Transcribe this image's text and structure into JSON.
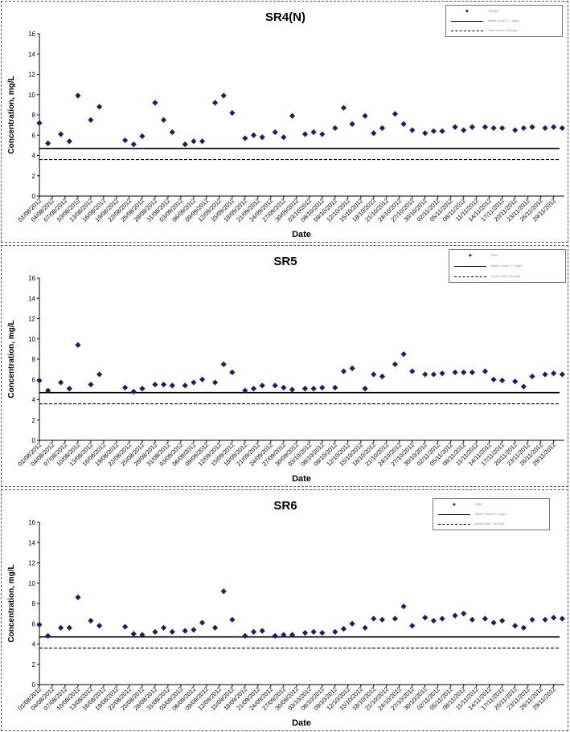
{
  "chart_data": [
    {
      "type": "scatter",
      "title": "SR4(N)",
      "xlabel": "Date",
      "ylabel": "Concentration, mg/L",
      "ylim": [
        0,
        16
      ],
      "yticks": [
        "0",
        "2",
        "4",
        "6",
        "8",
        "10",
        "12",
        "14",
        "16"
      ],
      "x_tick_labels": [
        "01/08/2012",
        "04/08/2012",
        "07/08/2012",
        "10/08/2012",
        "13/08/2012",
        "16/08/2012",
        "19/08/2012",
        "22/08/2012",
        "25/08/2012",
        "28/08/2012",
        "31/08/2012",
        "03/09/2012",
        "06/09/2012",
        "09/09/2012",
        "12/09/2012",
        "15/09/2012",
        "18/09/2012",
        "21/09/2012",
        "24/09/2012",
        "27/09/2012",
        "30/09/2012",
        "03/10/2012",
        "06/10/2012",
        "09/10/2012",
        "12/10/2012",
        "15/10/2012",
        "18/10/2012",
        "21/10/2012",
        "24/10/2012",
        "27/10/2012",
        "30/10/2012",
        "02/11/2012",
        "05/11/2012",
        "08/11/2012",
        "11/11/2012",
        "14/11/2012",
        "17/11/2012",
        "20/11/2012",
        "23/11/2012",
        "26/11/2012",
        "29/11/2012"
      ],
      "xlim": [
        "2012-08-01",
        "2012-11-30"
      ],
      "grid": false,
      "legend_position": "top-right",
      "series": [
        {
          "name": "SR4(N)",
          "marker": "diamond",
          "color": "#1c1c6c",
          "points": [
            [
              "2012-08-01",
              7.2
            ],
            [
              "2012-08-03",
              5.2
            ],
            [
              "2012-08-06",
              6.1
            ],
            [
              "2012-08-08",
              5.4
            ],
            [
              "2012-08-10",
              9.9
            ],
            [
              "2012-08-13",
              7.5
            ],
            [
              "2012-08-15",
              8.8
            ],
            [
              "2012-08-21",
              5.5
            ],
            [
              "2012-08-23",
              5.1
            ],
            [
              "2012-08-25",
              5.9
            ],
            [
              "2012-08-28",
              9.2
            ],
            [
              "2012-08-30",
              7.5
            ],
            [
              "2012-09-01",
              6.3
            ],
            [
              "2012-09-04",
              5.1
            ],
            [
              "2012-09-06",
              5.4
            ],
            [
              "2012-09-08",
              5.4
            ],
            [
              "2012-09-11",
              9.2
            ],
            [
              "2012-09-13",
              9.9
            ],
            [
              "2012-09-15",
              8.2
            ],
            [
              "2012-09-18",
              5.7
            ],
            [
              "2012-09-20",
              6.0
            ],
            [
              "2012-09-22",
              5.8
            ],
            [
              "2012-09-25",
              6.3
            ],
            [
              "2012-09-27",
              5.8
            ],
            [
              "2012-09-29",
              7.9
            ],
            [
              "2012-10-02",
              6.1
            ],
            [
              "2012-10-04",
              6.3
            ],
            [
              "2012-10-06",
              6.1
            ],
            [
              "2012-10-09",
              6.7
            ],
            [
              "2012-10-11",
              8.7
            ],
            [
              "2012-10-13",
              7.1
            ],
            [
              "2012-10-16",
              7.9
            ],
            [
              "2012-10-18",
              6.2
            ],
            [
              "2012-10-20",
              6.7
            ],
            [
              "2012-10-23",
              8.1
            ],
            [
              "2012-10-25",
              7.1
            ],
            [
              "2012-10-27",
              6.5
            ],
            [
              "2012-10-30",
              6.2
            ],
            [
              "2012-11-01",
              6.4
            ],
            [
              "2012-11-03",
              6.4
            ],
            [
              "2012-11-06",
              6.8
            ],
            [
              "2012-11-08",
              6.5
            ],
            [
              "2012-11-10",
              6.8
            ],
            [
              "2012-11-13",
              6.8
            ],
            [
              "2012-11-15",
              6.7
            ],
            [
              "2012-11-17",
              6.7
            ],
            [
              "2012-11-20",
              6.5
            ],
            [
              "2012-11-22",
              6.7
            ],
            [
              "2012-11-24",
              6.8
            ],
            [
              "2012-11-27",
              6.7
            ],
            [
              "2012-11-29",
              6.8
            ],
            [
              "2012-12-01",
              6.7
            ]
          ]
        },
        {
          "name": "Alarm Level: 4.7 mg/L",
          "type": "hline",
          "y": 4.7,
          "style": "solid"
        },
        {
          "name": "Limit Level: 3.6 mg/L",
          "type": "hline",
          "y": 3.6,
          "style": "dashed"
        }
      ]
    },
    {
      "type": "scatter",
      "title": "SR5",
      "xlabel": "Date",
      "ylabel": "Concentration, mg/L",
      "ylim": [
        0,
        16
      ],
      "yticks": [
        "0",
        "2",
        "4",
        "6",
        "8",
        "10",
        "12",
        "14",
        "16"
      ],
      "x_tick_labels": [
        "01/08/2012",
        "04/08/2012",
        "07/08/2012",
        "10/08/2012",
        "13/08/2012",
        "16/08/2012",
        "19/08/2012",
        "22/08/2012",
        "25/08/2012",
        "28/08/2012",
        "31/08/2012",
        "03/09/2012",
        "06/09/2012",
        "09/09/2012",
        "12/09/2012",
        "15/09/2012",
        "18/09/2012",
        "21/09/2012",
        "24/09/2012",
        "27/09/2012",
        "30/09/2012",
        "03/10/2012",
        "06/10/2012",
        "09/10/2012",
        "12/10/2012",
        "15/10/2012",
        "18/10/2012",
        "21/10/2012",
        "24/10/2012",
        "27/10/2012",
        "30/10/2012",
        "02/11/2012",
        "05/11/2012",
        "08/11/2012",
        "11/11/2012",
        "14/11/2012",
        "17/11/2012",
        "20/11/2012",
        "23/11/2012",
        "26/11/2012",
        "29/11/2012"
      ],
      "xlim": [
        "2012-08-01",
        "2012-11-30"
      ],
      "grid": false,
      "legend_position": "top-right",
      "series": [
        {
          "name": "SR5",
          "marker": "diamond",
          "color": "#1c1c6c",
          "points": [
            [
              "2012-08-01",
              5.9
            ],
            [
              "2012-08-03",
              4.9
            ],
            [
              "2012-08-06",
              5.7
            ],
            [
              "2012-08-08",
              5.1
            ],
            [
              "2012-08-10",
              9.4
            ],
            [
              "2012-08-13",
              5.5
            ],
            [
              "2012-08-15",
              6.5
            ],
            [
              "2012-08-21",
              5.2
            ],
            [
              "2012-08-23",
              4.8
            ],
            [
              "2012-08-25",
              5.1
            ],
            [
              "2012-08-28",
              5.5
            ],
            [
              "2012-08-30",
              5.5
            ],
            [
              "2012-09-01",
              5.4
            ],
            [
              "2012-09-04",
              5.4
            ],
            [
              "2012-09-06",
              5.7
            ],
            [
              "2012-09-08",
              6.0
            ],
            [
              "2012-09-11",
              5.7
            ],
            [
              "2012-09-13",
              7.5
            ],
            [
              "2012-09-15",
              6.7
            ],
            [
              "2012-09-18",
              4.9
            ],
            [
              "2012-09-20",
              5.1
            ],
            [
              "2012-09-22",
              5.4
            ],
            [
              "2012-09-25",
              5.4
            ],
            [
              "2012-09-27",
              5.2
            ],
            [
              "2012-09-29",
              5.0
            ],
            [
              "2012-10-02",
              5.1
            ],
            [
              "2012-10-04",
              5.1
            ],
            [
              "2012-10-06",
              5.2
            ],
            [
              "2012-10-09",
              5.2
            ],
            [
              "2012-10-11",
              6.8
            ],
            [
              "2012-10-13",
              7.1
            ],
            [
              "2012-10-16",
              5.1
            ],
            [
              "2012-10-18",
              6.5
            ],
            [
              "2012-10-20",
              6.3
            ],
            [
              "2012-10-23",
              7.5
            ],
            [
              "2012-10-25",
              8.5
            ],
            [
              "2012-10-27",
              6.8
            ],
            [
              "2012-10-30",
              6.5
            ],
            [
              "2012-11-01",
              6.5
            ],
            [
              "2012-11-03",
              6.6
            ],
            [
              "2012-11-06",
              6.7
            ],
            [
              "2012-11-08",
              6.7
            ],
            [
              "2012-11-10",
              6.7
            ],
            [
              "2012-11-13",
              6.8
            ],
            [
              "2012-11-15",
              6.0
            ],
            [
              "2012-11-17",
              5.9
            ],
            [
              "2012-11-20",
              5.8
            ],
            [
              "2012-11-22",
              5.3
            ],
            [
              "2012-11-24",
              6.3
            ],
            [
              "2012-11-27",
              6.5
            ],
            [
              "2012-11-29",
              6.6
            ],
            [
              "2012-12-01",
              6.5
            ]
          ]
        },
        {
          "name": "Alarm Level: 4.7 mg/L",
          "type": "hline",
          "y": 4.7,
          "style": "solid"
        },
        {
          "name": "Limit Level: 3.6 mg/L",
          "type": "hline",
          "y": 3.6,
          "style": "dashed"
        }
      ]
    },
    {
      "type": "scatter",
      "title": "SR6",
      "xlabel": "Date",
      "ylabel": "Concentration, mg/L",
      "ylim": [
        0,
        16
      ],
      "yticks": [
        "0",
        "2",
        "4",
        "6",
        "8",
        "10",
        "12",
        "14",
        "16"
      ],
      "x_tick_labels": [
        "01/08/2012",
        "04/08/2012",
        "07/08/2012",
        "10/08/2012",
        "13/08/2012",
        "16/08/2012",
        "19/08/2012",
        "22/08/2012",
        "25/08/2012",
        "28/08/2012",
        "31/08/2012",
        "03/09/2012",
        "06/09/2012",
        "09/09/2012",
        "12/09/2012",
        "15/09/2012",
        "18/09/2012",
        "21/09/2012",
        "24/09/2012",
        "27/09/2012",
        "30/09/2012",
        "03/10/2012",
        "06/10/2012",
        "09/10/2012",
        "12/10/2012",
        "15/10/2012",
        "18/10/2012",
        "21/10/2012",
        "24/10/2012",
        "27/10/2012",
        "30/10/2012",
        "02/11/2012",
        "05/11/2012",
        "08/11/2012",
        "11/11/2012",
        "14/11/2012",
        "17/11/2012",
        "20/11/2012",
        "23/11/2012",
        "26/11/2012",
        "29/11/2012"
      ],
      "xlim": [
        "2012-08-01",
        "2012-11-30"
      ],
      "grid": false,
      "legend_position": "top-right",
      "series": [
        {
          "name": "SR6",
          "marker": "diamond",
          "color": "#1c1c6c",
          "points": [
            [
              "2012-08-01",
              5.9
            ],
            [
              "2012-08-03",
              4.8
            ],
            [
              "2012-08-06",
              5.6
            ],
            [
              "2012-08-08",
              5.6
            ],
            [
              "2012-08-10",
              8.6
            ],
            [
              "2012-08-13",
              6.3
            ],
            [
              "2012-08-15",
              5.8
            ],
            [
              "2012-08-21",
              5.7
            ],
            [
              "2012-08-23",
              5.0
            ],
            [
              "2012-08-25",
              4.9
            ],
            [
              "2012-08-28",
              5.2
            ],
            [
              "2012-08-30",
              5.6
            ],
            [
              "2012-09-01",
              5.2
            ],
            [
              "2012-09-04",
              5.3
            ],
            [
              "2012-09-06",
              5.4
            ],
            [
              "2012-09-08",
              6.1
            ],
            [
              "2012-09-11",
              5.6
            ],
            [
              "2012-09-13",
              9.2
            ],
            [
              "2012-09-15",
              6.4
            ],
            [
              "2012-09-18",
              4.8
            ],
            [
              "2012-09-20",
              5.2
            ],
            [
              "2012-09-22",
              5.3
            ],
            [
              "2012-09-25",
              4.8
            ],
            [
              "2012-09-27",
              4.9
            ],
            [
              "2012-09-29",
              4.9
            ],
            [
              "2012-10-02",
              5.1
            ],
            [
              "2012-10-04",
              5.2
            ],
            [
              "2012-10-06",
              5.1
            ],
            [
              "2012-10-09",
              5.2
            ],
            [
              "2012-10-11",
              5.5
            ],
            [
              "2012-10-13",
              6.0
            ],
            [
              "2012-10-16",
              5.6
            ],
            [
              "2012-10-18",
              6.5
            ],
            [
              "2012-10-20",
              6.4
            ],
            [
              "2012-10-23",
              6.5
            ],
            [
              "2012-10-25",
              7.7
            ],
            [
              "2012-10-27",
              5.8
            ],
            [
              "2012-10-30",
              6.6
            ],
            [
              "2012-11-01",
              6.3
            ],
            [
              "2012-11-03",
              6.5
            ],
            [
              "2012-11-06",
              6.8
            ],
            [
              "2012-11-08",
              7.0
            ],
            [
              "2012-11-10",
              6.4
            ],
            [
              "2012-11-13",
              6.5
            ],
            [
              "2012-11-15",
              6.1
            ],
            [
              "2012-11-17",
              6.3
            ],
            [
              "2012-11-20",
              5.8
            ],
            [
              "2012-11-22",
              5.6
            ],
            [
              "2012-11-24",
              6.4
            ],
            [
              "2012-11-27",
              6.4
            ],
            [
              "2012-11-29",
              6.6
            ],
            [
              "2012-12-01",
              6.5
            ]
          ]
        },
        {
          "name": "Alarm Level: 4.7 mg/L",
          "type": "hline",
          "y": 4.7,
          "style": "solid"
        },
        {
          "name": "Limit Level: 3.6 mg/L",
          "type": "hline",
          "y": 3.6,
          "style": "dashed"
        }
      ]
    }
  ]
}
